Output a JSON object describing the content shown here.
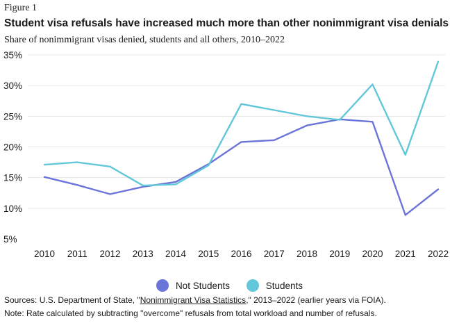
{
  "figure_label": "Figure 1",
  "title": "Student visa refusals have increased much more than other nonimmigrant visa denials",
  "subtitle": "Share of nonimmigrant visas denied, students and all others, 2010–2022",
  "legend": [
    {
      "name": "Not Students",
      "color": "#6b74d8"
    },
    {
      "name": "Students",
      "color": "#62c7d8"
    }
  ],
  "sources": {
    "prefix": "Sources: U.S. Department of State, \"",
    "link_text": "Nonimmigrant Visa Statistics",
    "suffix": ",\" 2013–2022 (earlier years via FOIA)."
  },
  "note": "Note: Rate calculated by subtracting \"overcome\" refusals from total workload and number of refusals.",
  "chart_data": {
    "type": "line",
    "x": [
      "2010",
      "2011",
      "2012",
      "2013",
      "2014",
      "2015",
      "2016",
      "2017",
      "2018",
      "2019",
      "2020",
      "2021",
      "2022"
    ],
    "series": [
      {
        "name": "Not Students",
        "color": "#6b74d8",
        "values": [
          15.1,
          13.8,
          12.3,
          13.5,
          14.3,
          17.2,
          20.8,
          21.1,
          23.5,
          24.5,
          24.1,
          8.9,
          13.1
        ]
      },
      {
        "name": "Students",
        "color": "#62c7d8",
        "values": [
          17.1,
          17.5,
          16.8,
          13.7,
          13.9,
          17.0,
          27.0,
          26.0,
          25.0,
          24.4,
          30.2,
          18.7,
          33.9
        ]
      }
    ],
    "yticks": [
      "35%",
      "30%",
      "25%",
      "20%",
      "15%",
      "10%",
      "5%"
    ],
    "ytick_values": [
      35,
      30,
      25,
      20,
      15,
      10,
      5
    ],
    "ylim": [
      5,
      35
    ],
    "grid": true,
    "legend_position": "bottom"
  }
}
